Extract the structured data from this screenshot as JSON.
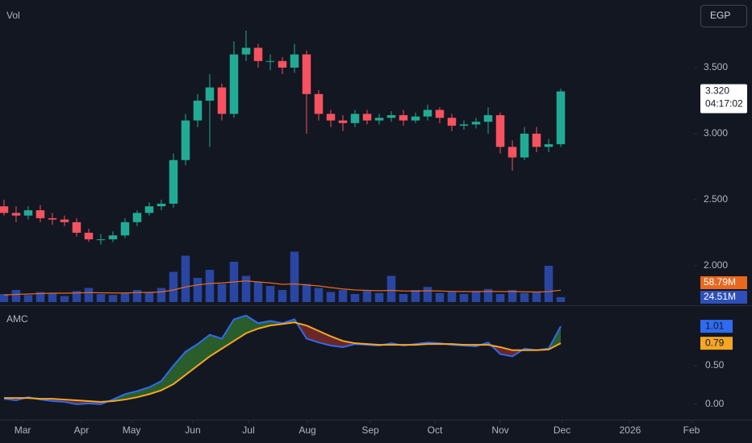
{
  "currency_button": "EGP",
  "chart_data": [
    {
      "type": "candlestick",
      "volume_label": "Vol",
      "xlim": [
        -0.33,
        57
      ],
      "ylim": [
        1.707,
        4.012
      ],
      "grid": false,
      "up_color": "#22ab94",
      "down_color": "#f7525f",
      "yticks": [
        {
          "value": 2,
          "label": "2.000"
        },
        {
          "value": 2.5,
          "label": "2.500"
        },
        {
          "value": 3,
          "label": "3.000"
        },
        {
          "value": 3.5,
          "label": "3.500"
        }
      ],
      "open": [
        2.45,
        2.4,
        2.38,
        2.42,
        2.36,
        2.35,
        2.33,
        2.25,
        2.2,
        2.2,
        2.23,
        2.33,
        2.4,
        2.45,
        2.47,
        2.8,
        3.1,
        3.25,
        3.35,
        3.15,
        3.6,
        3.65,
        3.55,
        3.55,
        3.5,
        3.6,
        3.3,
        3.15,
        3.1,
        3.08,
        3.15,
        3.1,
        3.12,
        3.14,
        3.1,
        3.13,
        3.18,
        3.12,
        3.06,
        3.07,
        3.09,
        3.14,
        2.9,
        2.82,
        3.0,
        2.9,
        2.92
      ],
      "high": [
        2.5,
        2.45,
        2.45,
        2.46,
        2.4,
        2.38,
        2.36,
        2.28,
        2.24,
        2.26,
        2.36,
        2.42,
        2.48,
        2.5,
        2.85,
        3.15,
        3.3,
        3.45,
        3.38,
        3.7,
        3.78,
        3.68,
        3.6,
        3.58,
        3.68,
        3.63,
        3.33,
        3.18,
        3.14,
        3.18,
        3.18,
        3.15,
        3.17,
        3.18,
        3.16,
        3.22,
        3.2,
        3.15,
        3.1,
        3.12,
        3.2,
        3.16,
        2.95,
        3.05,
        3.05,
        2.96,
        3.34
      ],
      "low": [
        2.38,
        2.33,
        2.35,
        2.33,
        2.31,
        2.3,
        2.22,
        2.18,
        2.16,
        2.18,
        2.21,
        2.3,
        2.38,
        2.42,
        2.44,
        2.76,
        3.05,
        2.9,
        3.1,
        3.12,
        3.55,
        3.5,
        3.48,
        3.45,
        3.46,
        3.0,
        3.1,
        3.05,
        3.02,
        3.05,
        3.07,
        3.07,
        3.09,
        3.06,
        3.08,
        3.1,
        3.08,
        3.02,
        3.03,
        3.04,
        3.0,
        2.85,
        2.72,
        2.8,
        2.86,
        2.86,
        2.9
      ],
      "close": [
        2.4,
        2.38,
        2.42,
        2.36,
        2.35,
        2.33,
        2.25,
        2.2,
        2.2,
        2.23,
        2.33,
        2.4,
        2.45,
        2.47,
        2.8,
        3.1,
        3.25,
        3.35,
        3.15,
        3.6,
        3.65,
        3.55,
        3.55,
        3.5,
        3.6,
        3.3,
        3.15,
        3.1,
        3.08,
        3.15,
        3.1,
        3.12,
        3.14,
        3.1,
        3.13,
        3.18,
        3.12,
        3.06,
        3.07,
        3.09,
        3.14,
        2.9,
        2.82,
        3.0,
        2.9,
        2.92,
        3.32
      ],
      "last_price": {
        "value": 3.32,
        "label": "3.320"
      },
      "countdown": "04:17:02",
      "volume_lim": [
        0,
        380
      ],
      "volume_color": "#2e4fb8",
      "volume": [
        40,
        60,
        35,
        50,
        45,
        30,
        55,
        70,
        40,
        35,
        45,
        60,
        50,
        70,
        150,
        230,
        120,
        160,
        90,
        200,
        130,
        100,
        80,
        60,
        250,
        90,
        70,
        50,
        60,
        40,
        55,
        45,
        130,
        40,
        60,
        75,
        45,
        50,
        40,
        55,
        65,
        40,
        60,
        45,
        50,
        180,
        24.51
      ],
      "volume_ma_color": "#e8681f",
      "volume_ma": [
        35,
        38,
        40,
        42,
        44,
        44,
        45,
        47,
        46,
        45,
        45,
        47,
        48,
        50,
        60,
        75,
        85,
        92,
        95,
        100,
        105,
        100,
        95,
        88,
        90,
        85,
        80,
        72,
        65,
        60,
        58,
        56,
        58,
        55,
        54,
        56,
        55,
        53,
        52,
        52,
        53,
        52,
        52,
        51,
        50,
        52,
        58.79
      ],
      "volume_last": {
        "value": 24.51,
        "label": "24.51M"
      },
      "volume_ma_last": {
        "value": 58.79,
        "label": "58.79M"
      }
    },
    {
      "type": "line",
      "title": "AMC",
      "xlim": [
        -0.33,
        57
      ],
      "ylim": [
        -0.19,
        1.22
      ],
      "xticks": [
        {
          "value": 1.54,
          "label": "Mar"
        },
        {
          "value": 6.4,
          "label": "Apr"
        },
        {
          "value": 10.54,
          "label": "May"
        },
        {
          "value": 15.6,
          "label": "Jun"
        },
        {
          "value": 20.2,
          "label": "Jul"
        },
        {
          "value": 25.07,
          "label": "Aug"
        },
        {
          "value": 30.27,
          "label": "Sep"
        },
        {
          "value": 35.6,
          "label": "Oct"
        },
        {
          "value": 41.0,
          "label": "Nov"
        },
        {
          "value": 46.1,
          "label": "Dec"
        },
        {
          "value": 51.73,
          "label": "2026"
        },
        {
          "value": 56.8,
          "label": "Feb"
        }
      ],
      "yticks": [
        {
          "value": 0,
          "label": "0.00"
        },
        {
          "value": 0.5,
          "label": "0.50"
        }
      ],
      "fill_up_color": "#2e6b2e",
      "fill_down_color": "#7a2a2a",
      "series": [
        {
          "color": "#2f6bf0",
          "values": [
            0.07,
            0.05,
            0.09,
            0.06,
            0.04,
            0.03,
            0.0,
            0.01,
            0.0,
            0.06,
            0.13,
            0.17,
            0.22,
            0.3,
            0.5,
            0.68,
            0.78,
            0.9,
            0.85,
            1.1,
            1.15,
            1.05,
            1.08,
            1.05,
            1.1,
            0.85,
            0.8,
            0.76,
            0.74,
            0.78,
            0.77,
            0.76,
            0.79,
            0.76,
            0.78,
            0.8,
            0.79,
            0.77,
            0.76,
            0.75,
            0.8,
            0.65,
            0.62,
            0.72,
            0.7,
            0.72,
            1.01
          ],
          "last": {
            "value": 1.01,
            "label": "1.01"
          }
        },
        {
          "color": "#f5a623",
          "values": [
            0.08,
            0.08,
            0.08,
            0.07,
            0.07,
            0.06,
            0.05,
            0.04,
            0.03,
            0.04,
            0.06,
            0.09,
            0.13,
            0.18,
            0.26,
            0.38,
            0.5,
            0.62,
            0.72,
            0.82,
            0.92,
            0.98,
            1.02,
            1.04,
            1.06,
            1.02,
            0.95,
            0.88,
            0.82,
            0.79,
            0.78,
            0.77,
            0.77,
            0.77,
            0.77,
            0.78,
            0.78,
            0.78,
            0.77,
            0.77,
            0.77,
            0.74,
            0.7,
            0.7,
            0.7,
            0.71,
            0.79
          ],
          "last": {
            "value": 0.79,
            "label": "0.79"
          }
        }
      ]
    }
  ]
}
